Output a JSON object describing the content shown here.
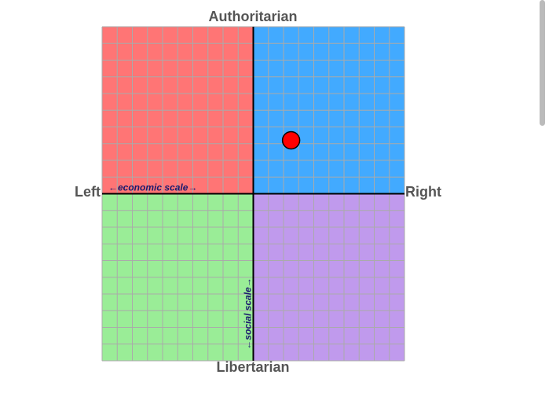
{
  "chart_data": {
    "type": "scatter",
    "title_top": "Authoritarian",
    "title_bottom": "Libertarian",
    "label_left": "Left",
    "label_right": "Right",
    "x_annotation": "←economic scale→",
    "y_annotation": "←social scale→",
    "xlim": [
      -10,
      10
    ],
    "ylim": [
      -10,
      10
    ],
    "xticks": [
      -10,
      -9,
      -8,
      -7,
      -6,
      -5,
      -4,
      -3,
      -2,
      -1,
      0,
      1,
      2,
      3,
      4,
      5,
      6,
      7,
      8,
      9,
      10
    ],
    "yticks": [
      -10,
      -9,
      -8,
      -7,
      -6,
      -5,
      -4,
      -3,
      -2,
      -1,
      0,
      1,
      2,
      3,
      4,
      5,
      6,
      7,
      8,
      9,
      10
    ],
    "grid": true,
    "quadrant_colors": [
      "#ff7575",
      "#42aaff",
      "#9aed97",
      "#c09aed"
    ],
    "series": [
      {
        "color": "#ff0000",
        "x": [
          2.5
        ],
        "values": [
          3.2
        ]
      }
    ]
  }
}
